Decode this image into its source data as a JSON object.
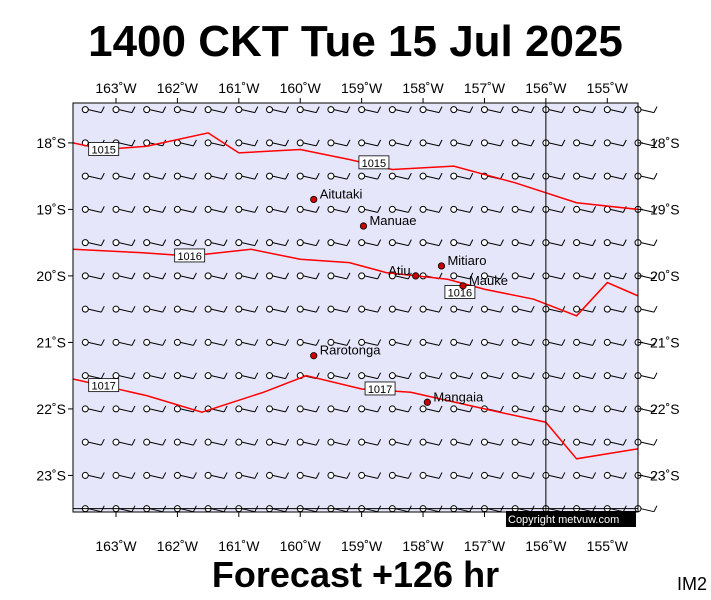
{
  "title": "1400 CKT Tue 15 Jul 2025",
  "footer": "Forecast +126 hr",
  "image_id": "IM2",
  "copyright": "Copyright metvuw.com",
  "colors": {
    "background": "#e6e6fa",
    "isobar": "#ff0000",
    "place_marker": "#cc0000",
    "frame": "#000000"
  },
  "map": {
    "lon_range": [
      -163.7,
      -154.5
    ],
    "lat_range": [
      -23.55,
      -17.4
    ],
    "lon_ticks": [
      {
        "value": -163,
        "label": "163˚W"
      },
      {
        "value": -162,
        "label": "162˚W"
      },
      {
        "value": -161,
        "label": "161˚W"
      },
      {
        "value": -160,
        "label": "160˚W"
      },
      {
        "value": -159,
        "label": "159˚W"
      },
      {
        "value": -158,
        "label": "158˚W"
      },
      {
        "value": -157,
        "label": "157˚W"
      },
      {
        "value": -156,
        "label": "156˚W"
      },
      {
        "value": -155,
        "label": "155˚W"
      }
    ],
    "lat_ticks": [
      {
        "value": -18,
        "label": "18˚S"
      },
      {
        "value": -19,
        "label": "19˚S"
      },
      {
        "value": -20,
        "label": "20˚S"
      },
      {
        "value": -21,
        "label": "21˚S"
      },
      {
        "value": -22,
        "label": "22˚S"
      },
      {
        "value": -23,
        "label": "23˚S"
      }
    ],
    "grid_lines": {
      "lon": -156,
      "lat": -23.5
    },
    "places": [
      {
        "name": "Aitutaki",
        "lon": -159.78,
        "lat": -18.85,
        "label_side": "right"
      },
      {
        "name": "Manuae",
        "lon": -158.97,
        "lat": -19.25,
        "label_side": "right"
      },
      {
        "name": "Mitiaro",
        "lon": -157.7,
        "lat": -19.85,
        "label_side": "right"
      },
      {
        "name": "Atiu",
        "lon": -158.12,
        "lat": -20.0,
        "label_side": "left"
      },
      {
        "name": "Mauke",
        "lon": -157.35,
        "lat": -20.15,
        "label_side": "right"
      },
      {
        "name": "Rarotonga",
        "lon": -159.78,
        "lat": -21.2,
        "label_side": "right"
      },
      {
        "name": "Mangaia",
        "lon": -157.93,
        "lat": -21.9,
        "label_side": "right"
      }
    ],
    "isobars": [
      {
        "label": "1015",
        "label_lon": -163.2,
        "label_lat": -18.1,
        "points": [
          [
            -163.7,
            -18.0
          ],
          [
            -163.2,
            -18.1
          ],
          [
            -162.5,
            -18.05
          ],
          [
            -161.5,
            -17.85
          ],
          [
            -161.0,
            -18.15
          ],
          [
            -160.0,
            -18.1
          ],
          [
            -159.2,
            -18.25
          ],
          [
            -158.5,
            -18.4
          ],
          [
            -157.5,
            -18.35
          ],
          [
            -156.5,
            -18.6
          ],
          [
            -155.5,
            -18.9
          ],
          [
            -154.5,
            -19.0
          ]
        ]
      },
      {
        "label": "1015",
        "label_lon": -158.8,
        "label_lat": -18.3,
        "points": []
      },
      {
        "label": "1016",
        "label_lon": -161.8,
        "label_lat": -19.7,
        "points": [
          [
            -163.7,
            -19.6
          ],
          [
            -162.6,
            -19.65
          ],
          [
            -161.8,
            -19.7
          ],
          [
            -160.8,
            -19.6
          ],
          [
            -160.0,
            -19.75
          ],
          [
            -159.2,
            -19.8
          ],
          [
            -158.6,
            -19.95
          ],
          [
            -157.6,
            -20.05
          ],
          [
            -157.0,
            -20.2
          ],
          [
            -156.2,
            -20.35
          ],
          [
            -155.5,
            -20.6
          ],
          [
            -155.0,
            -20.1
          ],
          [
            -154.5,
            -20.3
          ]
        ]
      },
      {
        "label": "1016",
        "label_lon": -157.4,
        "label_lat": -20.25,
        "points": []
      },
      {
        "label": "1017",
        "label_lon": -163.2,
        "label_lat": -21.65,
        "points": [
          [
            -163.7,
            -21.55
          ],
          [
            -162.5,
            -21.8
          ],
          [
            -161.6,
            -22.05
          ],
          [
            -160.6,
            -21.75
          ],
          [
            -159.9,
            -21.5
          ],
          [
            -159.0,
            -21.7
          ],
          [
            -158.2,
            -21.75
          ],
          [
            -157.0,
            -22.0
          ],
          [
            -156.0,
            -22.2
          ],
          [
            -155.5,
            -22.75
          ],
          [
            -154.5,
            -22.6
          ]
        ]
      },
      {
        "label": "1017",
        "label_lon": -158.7,
        "label_lat": -21.7,
        "points": []
      }
    ],
    "wind_grid": {
      "lon_start": -163.5,
      "lon_step": 0.5,
      "lon_count": 19,
      "lat_start": -17.5,
      "lat_step": -0.5,
      "lat_count": 13
    }
  }
}
